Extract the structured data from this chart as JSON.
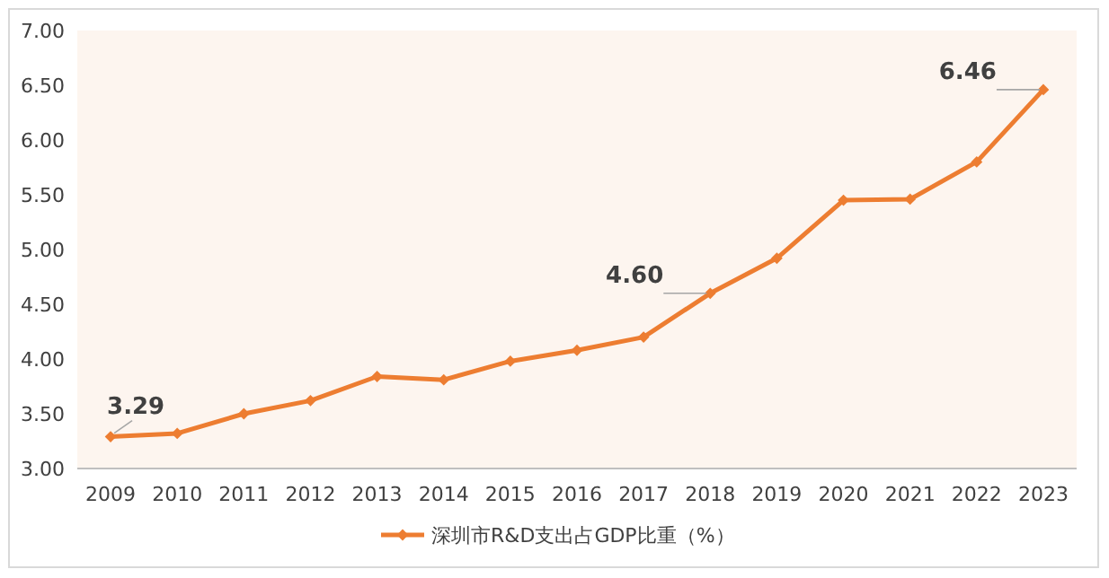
{
  "chart_data": {
    "type": "line",
    "categories": [
      "2009",
      "2010",
      "2011",
      "2012",
      "2013",
      "2014",
      "2015",
      "2016",
      "2017",
      "2018",
      "2019",
      "2020",
      "2021",
      "2022",
      "2023"
    ],
    "series": [
      {
        "name": "深圳市R&D支出占GDP比重（%）",
        "color": "#ed7d31",
        "values": [
          3.29,
          3.32,
          3.5,
          3.62,
          3.84,
          3.81,
          3.98,
          4.08,
          4.2,
          4.6,
          4.92,
          5.45,
          5.46,
          5.8,
          6.46
        ],
        "value_labels": [
          "3.29",
          null,
          null,
          null,
          null,
          null,
          null,
          null,
          null,
          "4.60",
          null,
          null,
          null,
          null,
          "6.46"
        ]
      }
    ],
    "ylim": [
      3,
      7
    ],
    "yticks": [
      {
        "value": 3,
        "label": "3.00"
      },
      {
        "value": 3.5,
        "label": "3.50"
      },
      {
        "value": 4,
        "label": "4.00"
      },
      {
        "value": 4.5,
        "label": "4.50"
      },
      {
        "value": 5,
        "label": "5.00"
      },
      {
        "value": 5.5,
        "label": "5.50"
      },
      {
        "value": 6,
        "label": "6.00"
      },
      {
        "value": 6.5,
        "label": "6.50"
      },
      {
        "value": 7,
        "label": "7.00"
      }
    ],
    "legend": "bottom",
    "marker": "diamond",
    "line_style": "solid"
  }
}
